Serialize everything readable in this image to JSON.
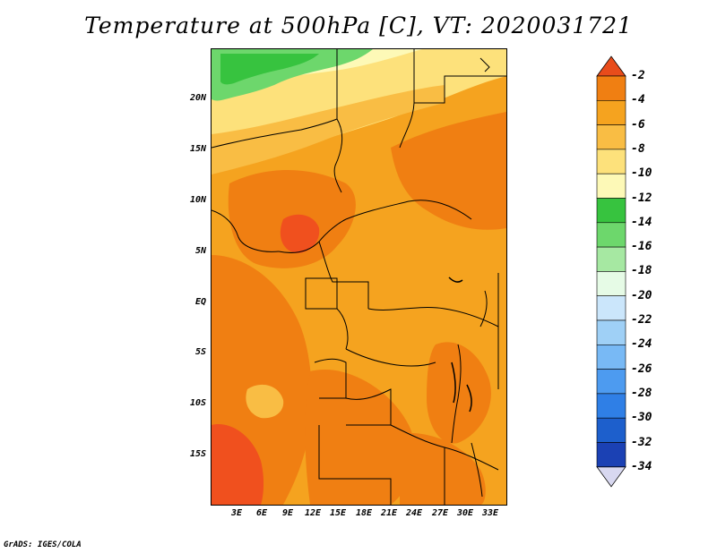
{
  "title": "Temperature at 500hPa [C], VT: 2020031721",
  "credit": "GrADS: IGES/COLA",
  "axes": {
    "y_ticks": [
      "20N",
      "15N",
      "10N",
      "5N",
      "EQ",
      "5S",
      "10S",
      "15S"
    ],
    "x_ticks": [
      "3E",
      "6E",
      "9E",
      "12E",
      "15E",
      "18E",
      "21E",
      "24E",
      "27E",
      "30E",
      "33E"
    ]
  },
  "colorbar": {
    "labels": [
      "-2",
      "-4",
      "-6",
      "-8",
      "-10",
      "-12",
      "-14",
      "-16",
      "-18",
      "-20",
      "-22",
      "-24",
      "-26",
      "-28",
      "-30",
      "-32",
      "-34"
    ],
    "colors": [
      "#f0501e",
      "#f07f12",
      "#f5a31f",
      "#f9bd44",
      "#fde17b",
      "#fdf9b7",
      "#37c33f",
      "#6dd76c",
      "#a6e8a2",
      "#e6fbe6",
      "#cbe6fb",
      "#9fd0f6",
      "#78b9f5",
      "#4d9bf0",
      "#2f7fe6",
      "#1d5fcc",
      "#1b41b4",
      "#0b1a77"
    ],
    "top_arrow_color": "#e84c1b",
    "bottom_arrow_color": "#d8d8f0"
  },
  "map_colors": {
    "warmest": "#f0501e",
    "warm": "#f07f12",
    "mid": "#f5a31f",
    "light": "#f9bd44",
    "pale": "#fde17b",
    "cream": "#fdf9b7",
    "green": "#37c33f",
    "light_green": "#6dd76c"
  }
}
